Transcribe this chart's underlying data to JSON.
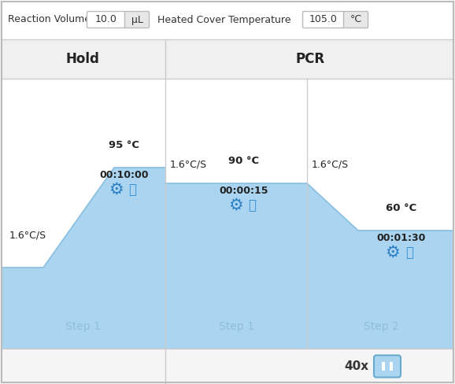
{
  "reaction_volume": "10.0",
  "reaction_volume_unit": "μL",
  "heated_cover_temp": "105.0",
  "heated_cover_unit": "°C",
  "fill_color": "#aad4f0",
  "fill_edge_color": "#88bfdf",
  "hold_label": "Hold",
  "pcr_label": "PCR",
  "cycles_label": "40x",
  "hold_step_label": "Step 1",
  "pcr_step1_label": "Step 1",
  "pcr_step2_label": "Step 2",
  "hold_temp": "95 °C",
  "hold_rate": "1.6°C/S",
  "hold_time": "00:10:00",
  "pcr_s1_temp": "90 °C",
  "pcr_s1_rate": "1.6°C/S",
  "pcr_s1_time": "00:00:15",
  "pcr_s2_temp": "60 °C",
  "pcr_s2_rate": "1.6°C/S",
  "pcr_s2_time": "00:01:30",
  "gear_color": "#2b7fc4",
  "camera_color": "#3a8fd4",
  "step_text_color": "#90bedd",
  "div_color": "#cccccc",
  "header_bg": "#f0f0f0",
  "chart_bg": "#ffffff",
  "outer_bg": "#f5f5f5",
  "border_color": "#bbbbbb",
  "text_dark": "#222222",
  "text_mid": "#444444",
  "pause_btn_fill": "#aad4f0",
  "pause_btn_edge": "#66aacc",
  "top_bar_bg": "#ffffff",
  "bottom_bar_bg": "#f5f5f5"
}
